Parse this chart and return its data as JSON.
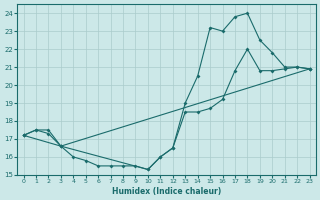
{
  "xlabel": "Humidex (Indice chaleur)",
  "xlim": [
    -0.5,
    23.5
  ],
  "ylim": [
    15,
    24.5
  ],
  "yticks": [
    15,
    16,
    17,
    18,
    19,
    20,
    21,
    22,
    23,
    24
  ],
  "xticks": [
    0,
    1,
    2,
    3,
    4,
    5,
    6,
    7,
    8,
    9,
    10,
    11,
    12,
    13,
    14,
    15,
    16,
    17,
    18,
    19,
    20,
    21,
    22,
    23
  ],
  "bg_color": "#cce8e8",
  "line_color": "#1a6b6b",
  "grid_color": "#aacccc",
  "line1_x": [
    0,
    1,
    2,
    3,
    4,
    5,
    6,
    7,
    8,
    9,
    10,
    11,
    12,
    13,
    14,
    15,
    16,
    17,
    18,
    19,
    20,
    21,
    22,
    23
  ],
  "line1_y": [
    17.2,
    17.5,
    17.5,
    16.6,
    16.0,
    15.8,
    15.5,
    15.5,
    15.5,
    15.5,
    15.3,
    16.0,
    16.5,
    18.5,
    18.5,
    18.7,
    19.2,
    20.8,
    22.0,
    20.8,
    20.8,
    20.9,
    21.0,
    20.9
  ],
  "line2_x": [
    0,
    1,
    2,
    3,
    10,
    11,
    12,
    13,
    14,
    15,
    16,
    17,
    18,
    19,
    20,
    21,
    22,
    23
  ],
  "line2_y": [
    17.2,
    17.5,
    17.3,
    16.6,
    15.3,
    16.0,
    16.5,
    19.0,
    20.5,
    23.2,
    23.0,
    23.8,
    24.0,
    22.5,
    21.8,
    21.0,
    21.0,
    20.9
  ],
  "line3_x": [
    0,
    3,
    23
  ],
  "line3_y": [
    17.2,
    16.6,
    20.9
  ]
}
